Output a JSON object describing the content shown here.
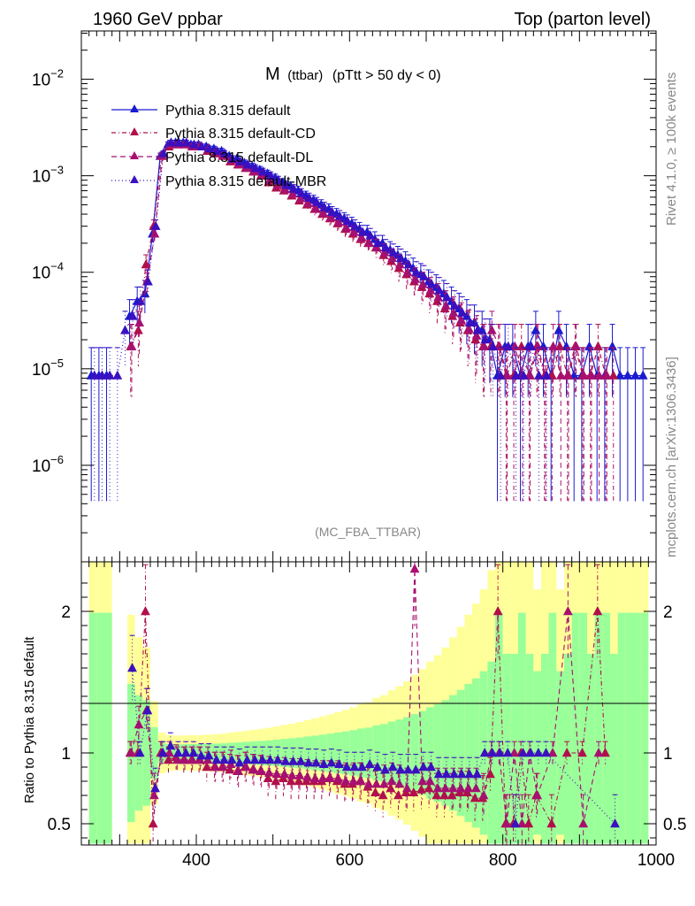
{
  "header": {
    "left": "1960 GeV ppbar",
    "right": "Top (parton level)"
  },
  "side": {
    "rivet": "Rivet 4.1.0, ≥ 100k events",
    "mcplots": "mcplots.cern.ch [arXiv:1306.3436]"
  },
  "chart_data": {
    "type": "line",
    "title_main": "M",
    "title_sub": "(ttbar)",
    "title_rest": "(pTtt > 50 dy < 0)",
    "watermark": "(MC_FBA_TTBAR)",
    "ylabel_lower": "Ratio to Pythia 8.315 default",
    "x_range": [
      250,
      1000
    ],
    "x_ticks": [
      400,
      600,
      800,
      1000
    ],
    "y_upper_range_log10": [
      -7.0,
      -1.5
    ],
    "y_upper_ticks": [
      {
        "exp": -2,
        "label": "10",
        "sup": "−2"
      },
      {
        "exp": -3,
        "label": "10",
        "sup": "−3"
      },
      {
        "exp": -4,
        "label": "10",
        "sup": "−4"
      },
      {
        "exp": -5,
        "label": "10",
        "sup": "−5"
      },
      {
        "exp": -6,
        "label": "10",
        "sup": "−6"
      }
    ],
    "y_lower_range": [
      0.35,
      2.35
    ],
    "y_lower_ticks": [
      {
        "v": 0.5,
        "label": "0.5"
      },
      {
        "v": 1,
        "label": "1"
      },
      {
        "v": 2,
        "label": "2"
      }
    ],
    "legend": [
      {
        "name": "Pythia 8.315 default",
        "color": "#1a1ad0",
        "dash": ""
      },
      {
        "name": "Pythia 8.315 default-CD",
        "color": "#b0104a",
        "dash": "5,3,1,3"
      },
      {
        "name": "Pythia 8.315 default-DL",
        "color": "#a81070",
        "dash": "6,4"
      },
      {
        "name": "Pythia 8.315 default-MBR",
        "color": "#3a10c0",
        "dash": "1,3"
      }
    ],
    "series": [
      {
        "name": "Pythia 8.315 default",
        "x": [
          265,
          275,
          285,
          295,
          305,
          315,
          325,
          335,
          345,
          355,
          365,
          375,
          385,
          395,
          405,
          415,
          425,
          435,
          445,
          455,
          465,
          475,
          485,
          495,
          505,
          515,
          525,
          535,
          545,
          555,
          565,
          575,
          585,
          595,
          605,
          615,
          625,
          635,
          645,
          655,
          665,
          675,
          685,
          695,
          705,
          715,
          725,
          735,
          745,
          755,
          765,
          775,
          785,
          795,
          805,
          815,
          825,
          835,
          845,
          855,
          865,
          875,
          885,
          895,
          905,
          915,
          925,
          935,
          945,
          955,
          965,
          975,
          985
        ],
        "y": [
          8.5e-06,
          8.5e-06,
          8.5e-06,
          0,
          0,
          3.5e-05,
          5e-05,
          6e-05,
          0.00025,
          0.0016,
          0.0021,
          0.0022,
          0.0022,
          0.0021,
          0.0021,
          0.002,
          0.0019,
          0.0018,
          0.0016,
          0.0015,
          0.00135,
          0.00125,
          0.00115,
          0.00105,
          0.00095,
          0.00085,
          0.00078,
          0.0007,
          0.00062,
          0.00056,
          0.0005,
          0.00045,
          0.0004,
          0.00036,
          0.00032,
          0.00028,
          0.00026,
          0.00022,
          0.0002,
          0.00017,
          0.00015,
          0.00013,
          0.00011,
          9.5e-05,
          8e-05,
          7e-05,
          6e-05,
          5e-05,
          4.2e-05,
          3.5e-05,
          3e-05,
          2.5e-05,
          2e-05,
          8.5e-06,
          1.7e-05,
          1.7e-05,
          8.5e-06,
          1.7e-05,
          2.5e-05,
          1.7e-05,
          8.5e-06,
          2.5e-05,
          1.7e-05,
          8.5e-06,
          8.5e-06,
          1.7e-05,
          8.5e-06,
          8.5e-06,
          1.7e-05,
          8.5e-06,
          8.5e-06,
          8.5e-06,
          8.5e-06
        ]
      },
      {
        "name": "Pythia 8.315 default-CD",
        "x": [
          315,
          325,
          335,
          345,
          355,
          365,
          375,
          385,
          395,
          405,
          415,
          425,
          435,
          445,
          455,
          465,
          475,
          485,
          495,
          505,
          515,
          525,
          535,
          545,
          555,
          565,
          575,
          585,
          595,
          605,
          615,
          625,
          635,
          645,
          655,
          665,
          675,
          685,
          695,
          705,
          715,
          725,
          735,
          745,
          755,
          765,
          775,
          785,
          795,
          805,
          815,
          825,
          835,
          845,
          855,
          865,
          875,
          885,
          895,
          905,
          915,
          925,
          935,
          945
        ],
        "y": [
          1.7e-05,
          2.5e-05,
          0.00012,
          0.0003,
          0.0016,
          0.002,
          0.0021,
          0.0021,
          0.002,
          0.002,
          0.0018,
          0.0017,
          0.0016,
          0.0014,
          0.0013,
          0.0012,
          0.0011,
          0.001,
          0.00085,
          0.00075,
          0.0007,
          0.00062,
          0.00055,
          0.0005,
          0.00045,
          0.0004,
          0.00036,
          0.00032,
          0.00028,
          0.00025,
          0.00022,
          0.0002,
          0.00018,
          0.00015,
          0.00013,
          0.00011,
          9.5e-05,
          8e-05,
          7e-05,
          6e-05,
          5e-05,
          4.2e-05,
          3.5e-05,
          3e-05,
          2.5e-05,
          2e-05,
          1.7e-05,
          1.7e-05,
          1.7e-05,
          8.5e-06,
          8.5e-06,
          1.7e-05,
          8.5e-06,
          1.7e-05,
          8.5e-06,
          8.5e-06,
          1.7e-05,
          8.5e-06,
          1.7e-05,
          8.5e-06,
          8.5e-06,
          1.7e-05,
          8.5e-06,
          8.5e-06
        ]
      },
      {
        "name": "Pythia 8.315 default-DL",
        "x": [
          315,
          325,
          335,
          345,
          355,
          365,
          375,
          385,
          395,
          405,
          415,
          425,
          435,
          445,
          455,
          465,
          475,
          485,
          495,
          505,
          515,
          525,
          535,
          545,
          555,
          565,
          575,
          585,
          595,
          605,
          615,
          625,
          635,
          645,
          655,
          665,
          675,
          685,
          695,
          705,
          715,
          725,
          735,
          745,
          755,
          765,
          775,
          785,
          795,
          805,
          815,
          825,
          835,
          845,
          855,
          865,
          875,
          885,
          895,
          905,
          915,
          925,
          935
        ],
        "y": [
          1.7e-05,
          3e-05,
          8e-05,
          0.00025,
          0.0016,
          0.0021,
          0.0021,
          0.0021,
          0.002,
          0.002,
          0.0019,
          0.0017,
          0.0016,
          0.00145,
          0.0013,
          0.0012,
          0.0011,
          0.001,
          0.0009,
          0.0008,
          0.00072,
          0.00065,
          0.00058,
          0.00052,
          0.00046,
          0.00041,
          0.00037,
          0.00033,
          0.00029,
          0.00026,
          0.00023,
          0.0002,
          0.00018,
          0.00016,
          0.00014,
          0.00012,
          0.0001,
          8.5e-05,
          7.5e-05,
          6.5e-05,
          5.5e-05,
          4.5e-05,
          3.8e-05,
          3.2e-05,
          2.6e-05,
          2.2e-05,
          1.7e-05,
          2.5e-05,
          1.7e-05,
          8.5e-06,
          1.7e-05,
          8.5e-06,
          8.5e-06,
          1.7e-05,
          8.5e-06,
          1.7e-05,
          8.5e-06,
          8.5e-06,
          1.7e-05,
          8.5e-06,
          8.5e-06,
          8.5e-06,
          8.5e-06
        ]
      },
      {
        "name": "Pythia 8.315 default-MBR",
        "x": [
          265,
          275,
          285,
          295,
          305,
          315,
          325,
          335,
          345,
          355,
          365,
          375,
          385,
          395,
          405,
          415,
          425,
          435,
          445,
          455,
          465,
          475,
          485,
          495,
          505,
          515,
          525,
          535,
          545,
          555,
          565,
          575,
          585,
          595,
          605,
          615,
          625,
          635,
          645,
          655,
          665,
          675,
          685,
          695,
          705,
          715,
          725,
          735,
          745,
          755,
          765,
          775,
          785,
          795,
          805,
          815,
          825,
          835,
          845,
          855
        ],
        "y": [
          8.5e-06,
          8.5e-06,
          8.5e-06,
          8.5e-06,
          2.5e-05,
          3.5e-05,
          5e-05,
          8e-05,
          0.0003,
          0.0017,
          0.0022,
          0.0022,
          0.0022,
          0.0021,
          0.002,
          0.0019,
          0.0018,
          0.0017,
          0.0015,
          0.0014,
          0.0013,
          0.0012,
          0.0011,
          0.001,
          0.0009,
          0.0008,
          0.00073,
          0.00066,
          0.00059,
          0.00053,
          0.00047,
          0.00042,
          0.00038,
          0.00034,
          0.0003,
          0.00026,
          0.00024,
          0.0002,
          0.00018,
          0.00016,
          0.00014,
          0.00012,
          0.0001,
          9e-05,
          7.5e-05,
          6.5e-05,
          5.5e-05,
          4.5e-05,
          3.8e-05,
          3e-05,
          2.5e-05,
          2e-05,
          1.7e-05,
          8.5e-06,
          1.7e-05,
          8.5e-06,
          8.5e-06,
          1.7e-05,
          8.5e-06,
          8.5e-06
        ]
      }
    ],
    "ratio_series": [
      {
        "name": "Pythia 8.315 default-CD",
        "x": [
          315,
          325,
          335,
          345,
          355,
          365,
          375,
          385,
          395,
          405,
          415,
          425,
          435,
          445,
          455,
          465,
          475,
          485,
          495,
          505,
          515,
          525,
          535,
          545,
          555,
          565,
          575,
          585,
          595,
          605,
          615,
          625,
          635,
          645,
          655,
          665,
          675,
          685,
          695,
          705,
          715,
          725,
          735,
          745,
          755,
          765,
          775,
          785,
          795,
          805,
          815,
          825,
          835,
          845,
          865,
          885,
          905,
          925,
          935
        ],
        "y": [
          1.0,
          1.0,
          2.0,
          0.5,
          1.0,
          0.95,
          0.97,
          0.95,
          0.95,
          0.95,
          0.9,
          0.9,
          0.9,
          0.88,
          0.87,
          0.9,
          0.88,
          0.87,
          0.82,
          0.8,
          0.82,
          0.8,
          0.8,
          0.8,
          0.8,
          0.8,
          0.82,
          0.8,
          0.78,
          0.78,
          0.8,
          0.76,
          0.72,
          0.7,
          0.75,
          0.7,
          0.72,
          0.72,
          0.74,
          0.75,
          0.7,
          0.7,
          0.7,
          0.72,
          0.72,
          0.68,
          0.68,
          0.85,
          2.0,
          0.5,
          0.5,
          1.0,
          0.5,
          0.7,
          0.5,
          1.0,
          1.0,
          2.0,
          1.0
        ]
      },
      {
        "name": "Pythia 8.315 default-DL",
        "x": [
          315,
          325,
          335,
          345,
          355,
          365,
          375,
          385,
          395,
          405,
          415,
          425,
          435,
          445,
          455,
          465,
          475,
          485,
          495,
          505,
          515,
          525,
          535,
          545,
          555,
          565,
          575,
          585,
          595,
          605,
          615,
          625,
          635,
          645,
          655,
          665,
          675,
          685,
          695,
          705,
          715,
          725,
          735,
          745,
          755,
          765,
          775,
          785,
          795,
          805,
          815,
          825,
          835,
          845,
          865,
          885,
          905,
          925
        ],
        "y": [
          1.0,
          1.2,
          1.3,
          0.7,
          1.0,
          1.0,
          0.95,
          0.95,
          0.95,
          0.95,
          0.95,
          0.9,
          0.9,
          0.92,
          0.87,
          0.9,
          0.88,
          0.87,
          0.86,
          0.85,
          0.85,
          0.84,
          0.84,
          0.83,
          0.82,
          0.82,
          0.82,
          0.82,
          0.8,
          0.8,
          0.8,
          0.78,
          0.78,
          0.78,
          0.8,
          0.78,
          0.75,
          2.3,
          0.8,
          0.8,
          0.75,
          0.75,
          0.75,
          0.75,
          0.75,
          0.75,
          0.7,
          1.0,
          1.0,
          0.5,
          1.0,
          0.5,
          1.0,
          0.7,
          1.0,
          2.0,
          0.5,
          1.0
        ]
      },
      {
        "name": "Pythia 8.315 default-MBR",
        "x": [
          315,
          325,
          335,
          345,
          355,
          365,
          375,
          385,
          395,
          405,
          415,
          425,
          435,
          445,
          455,
          465,
          475,
          485,
          495,
          505,
          515,
          525,
          535,
          545,
          555,
          565,
          575,
          585,
          595,
          605,
          615,
          625,
          635,
          645,
          655,
          665,
          675,
          685,
          695,
          705,
          715,
          725,
          735,
          745,
          755,
          765,
          775,
          785,
          795,
          805,
          815,
          825,
          835,
          845,
          855,
          945
        ],
        "y": [
          1.6,
          1.0,
          1.3,
          0.75,
          1.0,
          1.05,
          1.0,
          1.0,
          1.0,
          0.98,
          0.98,
          0.95,
          0.95,
          0.95,
          0.93,
          0.95,
          0.95,
          0.95,
          0.95,
          0.95,
          0.94,
          0.94,
          0.94,
          0.93,
          0.93,
          0.92,
          0.93,
          0.92,
          0.9,
          0.9,
          0.9,
          0.92,
          0.9,
          0.88,
          0.9,
          0.88,
          0.88,
          0.88,
          0.9,
          0.9,
          0.85,
          0.85,
          0.85,
          0.85,
          0.85,
          0.85,
          1.0,
          1.0,
          1.0,
          1.0,
          0.5,
          1.0,
          1.0,
          1.0,
          1.0,
          0.5
        ]
      }
    ]
  }
}
